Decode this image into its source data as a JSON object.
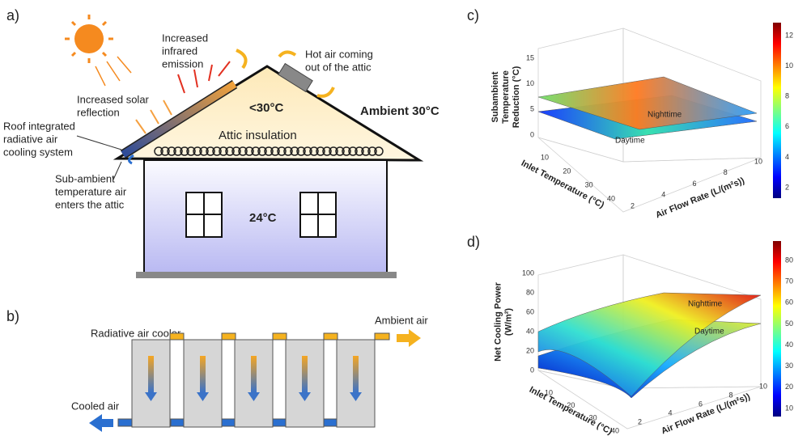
{
  "panel_a": {
    "label": "a)",
    "infrared": [
      "Increased",
      "infrared",
      "emission"
    ],
    "solar": [
      "Increased solar",
      "reflection"
    ],
    "roof_system": [
      "Roof integrated",
      "radiative air",
      "cooling system"
    ],
    "sub_ambient": [
      "Sub-ambient",
      "temperature air",
      "enters the attic"
    ],
    "hot_air": [
      "Hot air coming",
      "out of the attic"
    ],
    "attic_temp": "<30°C",
    "ambient": "Ambient 30°C",
    "insulation": "Attic insulation",
    "room_temp": "24°C"
  },
  "panel_b": {
    "label": "b)",
    "cooler": "Radiative air cooler",
    "ambient_air": "Ambient air",
    "cooled_air": "Cooled air"
  },
  "panel_c": {
    "label": "c)",
    "z_label": [
      "Subambient",
      "Temperature",
      "Reduction (°C)"
    ],
    "z_ticks": [
      0,
      5,
      10,
      15
    ],
    "inlet_label": "Inlet Temperature (°C)",
    "inlet_ticks": [
      10,
      20,
      30,
      40
    ],
    "flow_label": "Air Flow Rate (L/(m²s))",
    "flow_ticks": [
      2,
      4,
      6,
      8,
      10
    ],
    "colorbar_ticks": [
      2,
      4,
      6,
      8,
      10,
      12
    ],
    "nighttime": "Nighttime",
    "daytime": "Daytime"
  },
  "panel_d": {
    "label": "d)",
    "z_label": [
      "Net Cooling Power",
      "(W/m²)"
    ],
    "z_ticks": [
      0,
      20,
      40,
      60,
      80,
      100
    ],
    "inlet_label": "Inlet Temperature (°C)",
    "inlet_ticks": [
      10,
      20,
      30,
      40
    ],
    "flow_label": "Air Flow Rate (L/(m²s))",
    "flow_ticks": [
      2,
      4,
      6,
      8,
      10
    ],
    "colorbar_ticks": [
      10,
      20,
      30,
      40,
      50,
      60,
      70,
      80
    ],
    "nighttime": "Nighttime",
    "daytime": "Daytime"
  }
}
